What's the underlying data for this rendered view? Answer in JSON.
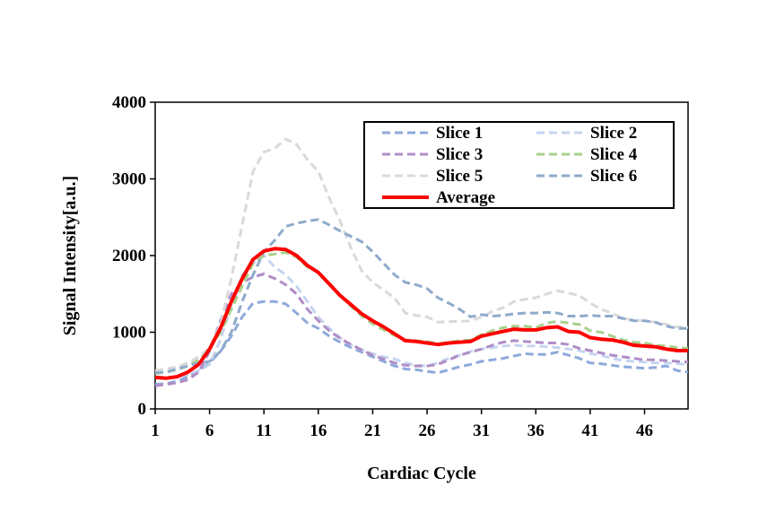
{
  "chart_data": {
    "type": "line",
    "title": "",
    "xlabel": "Cardiac Cycle",
    "ylabel": "Signal Intensity[a.u.]",
    "xlim": [
      1,
      50
    ],
    "ylim": [
      0,
      4000
    ],
    "x_ticks": [
      1,
      6,
      11,
      16,
      21,
      26,
      31,
      36,
      41,
      46
    ],
    "x_tick_labels": [
      "1",
      "6",
      "11",
      "16",
      "21",
      "26",
      "31",
      "36",
      "41",
      "46"
    ],
    "y_ticks": [
      0,
      1000,
      2000,
      3000,
      4000
    ],
    "y_tick_labels": [
      "0",
      "1000",
      "2000",
      "3000",
      "4000"
    ],
    "legend_position": "top-right",
    "x": [
      1,
      2,
      3,
      4,
      5,
      6,
      7,
      8,
      9,
      10,
      11,
      12,
      13,
      14,
      15,
      16,
      17,
      18,
      19,
      20,
      21,
      22,
      23,
      24,
      25,
      26,
      27,
      28,
      29,
      30,
      31,
      32,
      33,
      34,
      35,
      36,
      37,
      38,
      39,
      40,
      41,
      42,
      43,
      44,
      45,
      46,
      47,
      48,
      49,
      50
    ],
    "series": [
      {
        "name": "Slice 1",
        "color": "#8EA9DB",
        "dash": true,
        "width": 3,
        "values": [
          320,
          330,
          360,
          420,
          500,
          600,
          750,
          950,
          1200,
          1380,
          1400,
          1400,
          1370,
          1250,
          1120,
          1050,
          950,
          870,
          800,
          740,
          680,
          620,
          560,
          520,
          510,
          490,
          470,
          510,
          550,
          580,
          620,
          640,
          660,
          690,
          720,
          710,
          710,
          740,
          700,
          660,
          600,
          590,
          570,
          550,
          540,
          530,
          540,
          560,
          500,
          480
        ]
      },
      {
        "name": "Slice 2",
        "color": "#C5D4F0",
        "dash": true,
        "width": 3,
        "values": [
          420,
          410,
          420,
          450,
          500,
          580,
          900,
          1350,
          1750,
          1900,
          2000,
          1850,
          1750,
          1600,
          1400,
          1200,
          1050,
          930,
          830,
          770,
          720,
          680,
          650,
          600,
          570,
          560,
          600,
          660,
          700,
          750,
          780,
          800,
          820,
          830,
          820,
          820,
          810,
          800,
          780,
          760,
          720,
          700,
          660,
          630,
          620,
          610,
          600,
          600,
          590,
          580
        ]
      },
      {
        "name": "Slice 3",
        "color": "#B08DC7",
        "dash": true,
        "width": 3,
        "values": [
          300,
          320,
          340,
          380,
          480,
          750,
          1150,
          1500,
          1650,
          1720,
          1760,
          1700,
          1620,
          1500,
          1300,
          1150,
          1020,
          920,
          840,
          770,
          700,
          650,
          600,
          570,
          560,
          560,
          580,
          640,
          700,
          740,
          780,
          830,
          870,
          890,
          880,
          870,
          860,
          860,
          840,
          790,
          760,
          730,
          700,
          680,
          660,
          640,
          640,
          630,
          620,
          610
        ]
      },
      {
        "name": "Slice 4",
        "color": "#A8D08D",
        "dash": true,
        "width": 3,
        "values": [
          460,
          480,
          510,
          560,
          640,
          780,
          1000,
          1300,
          1600,
          1900,
          2000,
          2020,
          2040,
          1980,
          1850,
          1780,
          1620,
          1480,
          1340,
          1210,
          1110,
          1030,
          960,
          900,
          890,
          880,
          850,
          870,
          890,
          900,
          970,
          1020,
          1060,
          1080,
          1080,
          1060,
          1120,
          1140,
          1120,
          1100,
          1020,
          1000,
          950,
          900,
          870,
          860,
          830,
          820,
          800,
          790
        ]
      },
      {
        "name": "Slice 5",
        "color": "#D9D9D9",
        "dash": true,
        "width": 3,
        "values": [
          500,
          520,
          550,
          600,
          680,
          800,
          1100,
          1700,
          2400,
          3100,
          3350,
          3400,
          3520,
          3450,
          3250,
          3100,
          2750,
          2450,
          2100,
          1800,
          1650,
          1550,
          1450,
          1250,
          1220,
          1200,
          1130,
          1140,
          1140,
          1150,
          1200,
          1270,
          1320,
          1400,
          1430,
          1450,
          1500,
          1540,
          1510,
          1480,
          1380,
          1300,
          1250,
          1180,
          1160,
          1150,
          1130,
          1100,
          1070,
          1060
        ]
      },
      {
        "name": "Slice 6",
        "color": "#8FAACB",
        "dash": true,
        "width": 3,
        "values": [
          470,
          480,
          520,
          560,
          600,
          620,
          750,
          1000,
          1400,
          1750,
          2050,
          2200,
          2380,
          2420,
          2450,
          2470,
          2400,
          2320,
          2250,
          2180,
          2050,
          1900,
          1750,
          1650,
          1620,
          1570,
          1450,
          1380,
          1300,
          1200,
          1230,
          1210,
          1220,
          1240,
          1250,
          1250,
          1260,
          1250,
          1210,
          1210,
          1220,
          1210,
          1210,
          1180,
          1150,
          1150,
          1130,
          1080,
          1050,
          1050
        ]
      },
      {
        "name": "Average",
        "color": "#FF0000",
        "dash": false,
        "width": 4,
        "values": [
          410,
          400,
          420,
          480,
          580,
          780,
          1050,
          1400,
          1700,
          1950,
          2060,
          2090,
          2080,
          2000,
          1870,
          1780,
          1630,
          1480,
          1360,
          1240,
          1150,
          1070,
          980,
          890,
          880,
          860,
          840,
          860,
          870,
          880,
          950,
          980,
          1010,
          1040,
          1030,
          1030,
          1060,
          1070,
          1010,
          1000,
          930,
          910,
          900,
          870,
          830,
          820,
          810,
          780,
          760,
          760
        ]
      }
    ]
  }
}
